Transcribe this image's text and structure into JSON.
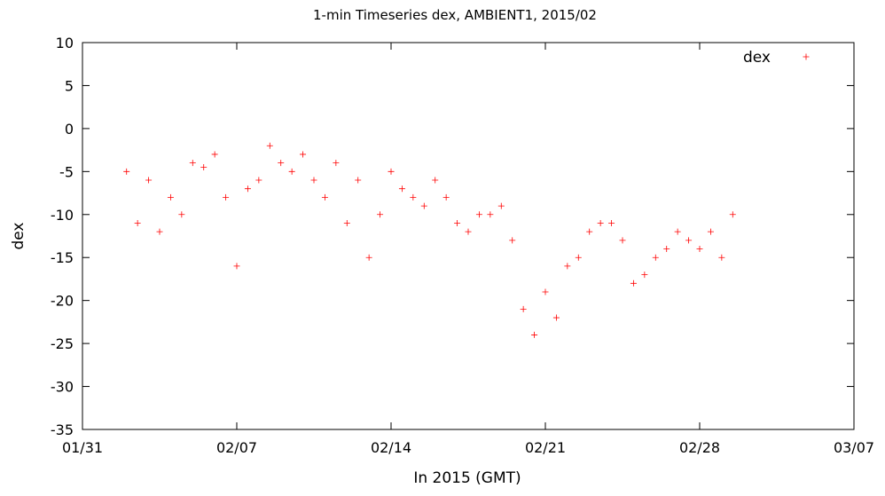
{
  "chart_data": {
    "type": "scatter",
    "title": "1-min Timeseries dex, AMBIENT1, 2015/02",
    "xlabel": "In 2015 (GMT)",
    "ylabel": "dex",
    "xlim": [
      "2015-01-31",
      "2015-03-07"
    ],
    "ylim": [
      -35,
      10
    ],
    "x_ticks": [
      "01/31",
      "02/07",
      "02/14",
      "02/21",
      "02/28",
      "03/07"
    ],
    "y_ticks": [
      10,
      5,
      0,
      -5,
      -10,
      -15,
      -20,
      -25,
      -30,
      -35
    ],
    "grid": false,
    "legend": "top-right",
    "marker": "+",
    "color": "#ff0000",
    "series": [
      {
        "name": "dex",
        "x": [
          "2015-02-02",
          "2015-02-02.5",
          "2015-02-03",
          "2015-02-03.5",
          "2015-02-04",
          "2015-02-04.5",
          "2015-02-05",
          "2015-02-05.5",
          "2015-02-06",
          "2015-02-06.5",
          "2015-02-07",
          "2015-02-07.5",
          "2015-02-08",
          "2015-02-08.5",
          "2015-02-09",
          "2015-02-09.5",
          "2015-02-10",
          "2015-02-10.5",
          "2015-02-11",
          "2015-02-11.5",
          "2015-02-12",
          "2015-02-12.5",
          "2015-02-13",
          "2015-02-13.5",
          "2015-02-14",
          "2015-02-14.5",
          "2015-02-15",
          "2015-02-15.5",
          "2015-02-16",
          "2015-02-16.5",
          "2015-02-17",
          "2015-02-17.5",
          "2015-02-18",
          "2015-02-18.5",
          "2015-02-19",
          "2015-02-19.5",
          "2015-02-20",
          "2015-02-20.5",
          "2015-02-21",
          "2015-02-21.5",
          "2015-02-22",
          "2015-02-22.5",
          "2015-02-23",
          "2015-02-23.5",
          "2015-02-24",
          "2015-02-24.5",
          "2015-02-25",
          "2015-02-25.5",
          "2015-02-26",
          "2015-02-26.5",
          "2015-02-27",
          "2015-02-27.5",
          "2015-02-28",
          "2015-02-28.5",
          "2015-03-01",
          "2015-03-01.5"
        ],
        "y": [
          -5,
          -11,
          -6,
          -12,
          -8,
          -10,
          -4,
          -4.5,
          -3,
          -8,
          -16,
          -7,
          -6,
          -2,
          -4,
          -5,
          -3,
          -6,
          -8,
          -4,
          -11,
          -6,
          -15,
          -10,
          -5,
          -7,
          -8,
          -9,
          -6,
          -8,
          -11,
          -12,
          -10,
          -10,
          -9,
          -13,
          -21,
          -24,
          -19,
          -22,
          -16,
          -15,
          -12,
          -11,
          -11,
          -13,
          -18,
          -17,
          -15,
          -14,
          -12,
          -13,
          -14,
          -12,
          -15,
          -10
        ]
      }
    ]
  }
}
